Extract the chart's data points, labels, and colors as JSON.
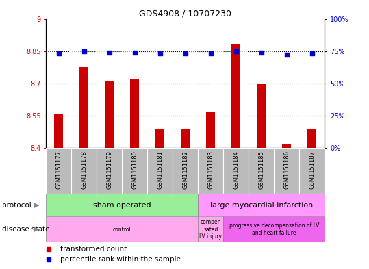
{
  "title": "GDS4908 / 10707230",
  "samples": [
    "GSM1151177",
    "GSM1151178",
    "GSM1151179",
    "GSM1151180",
    "GSM1151181",
    "GSM1151182",
    "GSM1151183",
    "GSM1151184",
    "GSM1151185",
    "GSM1151186",
    "GSM1151187"
  ],
  "bar_values": [
    8.56,
    8.775,
    8.71,
    8.72,
    8.49,
    8.49,
    8.565,
    8.88,
    8.7,
    8.42,
    8.49
  ],
  "percentile_values": [
    73,
    75,
    74,
    74,
    73,
    73,
    73,
    75,
    74,
    72,
    73
  ],
  "bar_color": "#cc0000",
  "percentile_color": "#0000cc",
  "ylim_left": [
    8.4,
    9.0
  ],
  "ylim_right": [
    0,
    100
  ],
  "yticks_left": [
    8.4,
    8.55,
    8.7,
    8.85,
    9.0
  ],
  "ytick_labels_left": [
    "8.4",
    "8.55",
    "8.7",
    "8.85",
    "9"
  ],
  "yticks_right": [
    0,
    25,
    50,
    75,
    100
  ],
  "ytick_labels_right": [
    "0%",
    "25%",
    "50%",
    "75%",
    "100%"
  ],
  "hlines": [
    8.55,
    8.7,
    8.85
  ],
  "protocol_groups": [
    {
      "label": "sham operated",
      "start": 0,
      "end": 5,
      "color": "#99ee99"
    },
    {
      "label": "large myocardial infarction",
      "start": 6,
      "end": 10,
      "color": "#ff99ff"
    }
  ],
  "disease_groups": [
    {
      "label": "control",
      "start": 0,
      "end": 5,
      "color": "#ffaaee"
    },
    {
      "label": "compen\nsated\nLV injury",
      "start": 6,
      "end": 6,
      "color": "#ffaaee"
    },
    {
      "label": "progressive decompensation of LV\nand heart failure",
      "start": 7,
      "end": 10,
      "color": "#ee66ee"
    }
  ],
  "xtick_bg": "#bbbbbb",
  "xtick_sep_color": "white",
  "legend_items": [
    {
      "label": "transformed count",
      "color": "#cc0000"
    },
    {
      "label": "percentile rank within the sample",
      "color": "#0000cc"
    }
  ],
  "background_color": "#ffffff"
}
